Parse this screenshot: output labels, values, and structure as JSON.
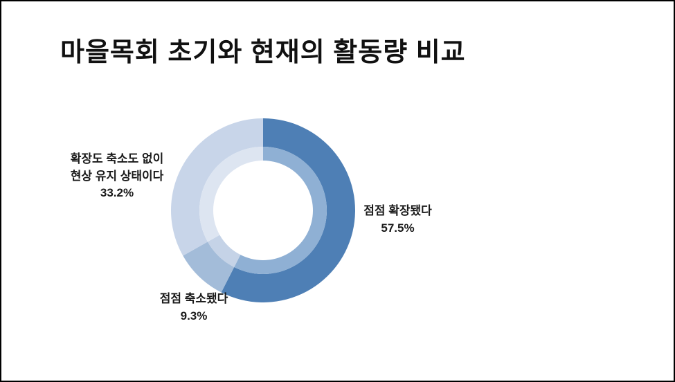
{
  "page": {
    "title": "마을목회 초기와 현재의 활동량 비교"
  },
  "chart_data": {
    "type": "pie",
    "subtype": "donut",
    "title": "마을목회 초기와 현재의 활동량 비교",
    "start_angle_deg": 0,
    "clockwise": true,
    "hole_radius_ratio": 0.54,
    "segments": [
      {
        "label": "점점 확장됐다",
        "value": 57.5,
        "display": "57.5%",
        "color": "#4e7fb5",
        "inner_color": "#8fb0d4"
      },
      {
        "label": "점점 축소됐다",
        "value": 9.3,
        "display": "9.3%",
        "color": "#a3bcd9",
        "inner_color": "#c5d3e7"
      },
      {
        "label": "확장도 축소도 없이 현상 유지 상태이다",
        "value": 33.2,
        "display": "33.2%",
        "color": "#c8d5e9",
        "inner_color": "#dde5f1"
      }
    ]
  },
  "labels": {
    "right": {
      "line1": "점점 확장됐다",
      "value": "57.5%"
    },
    "bottom": {
      "line1": "점점 축소됐다",
      "value": "9.3%"
    },
    "left": {
      "line1": "확장도 축소도 없이",
      "line2": "현상 유지 상태이다",
      "value": "33.2%"
    }
  }
}
